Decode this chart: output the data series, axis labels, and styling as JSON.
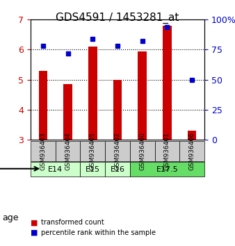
{
  "title": "GDS4591 / 1453281_at",
  "samples": [
    "GSM936403",
    "GSM936404",
    "GSM936405",
    "GSM936402",
    "GSM936400",
    "GSM936401",
    "GSM936406"
  ],
  "transformed_count": [
    5.3,
    4.85,
    6.1,
    5.0,
    5.95,
    6.8,
    3.3
  ],
  "percentile_rank": [
    78,
    72,
    84,
    78,
    82,
    94,
    50
  ],
  "age_groups": [
    {
      "label": "E14",
      "start": 0,
      "end": 2,
      "color": "#ccffcc"
    },
    {
      "label": "E15",
      "start": 2,
      "end": 3,
      "color": "#ccffcc"
    },
    {
      "label": "E16",
      "start": 3,
      "end": 4,
      "color": "#ccffcc"
    },
    {
      "label": "E17.5",
      "start": 4,
      "end": 7,
      "color": "#66dd66"
    }
  ],
  "bar_color": "#cc0000",
  "dot_color": "#0000cc",
  "ylim_left": [
    3,
    7
  ],
  "ylim_right": [
    0,
    100
  ],
  "yticks_left": [
    3,
    4,
    5,
    6,
    7
  ],
  "yticks_right": [
    0,
    25,
    50,
    75,
    100
  ],
  "yticklabels_right": [
    "0",
    "25",
    "50",
    "75",
    "100%"
  ],
  "background_color": "#ffffff",
  "plot_bg_color": "#ffffff",
  "grid_color": "#000000",
  "sample_box_color": "#cccccc",
  "age_label_color": "#000000",
  "legend_red_label": "transformed count",
  "legend_blue_label": "percentile rank within the sample"
}
